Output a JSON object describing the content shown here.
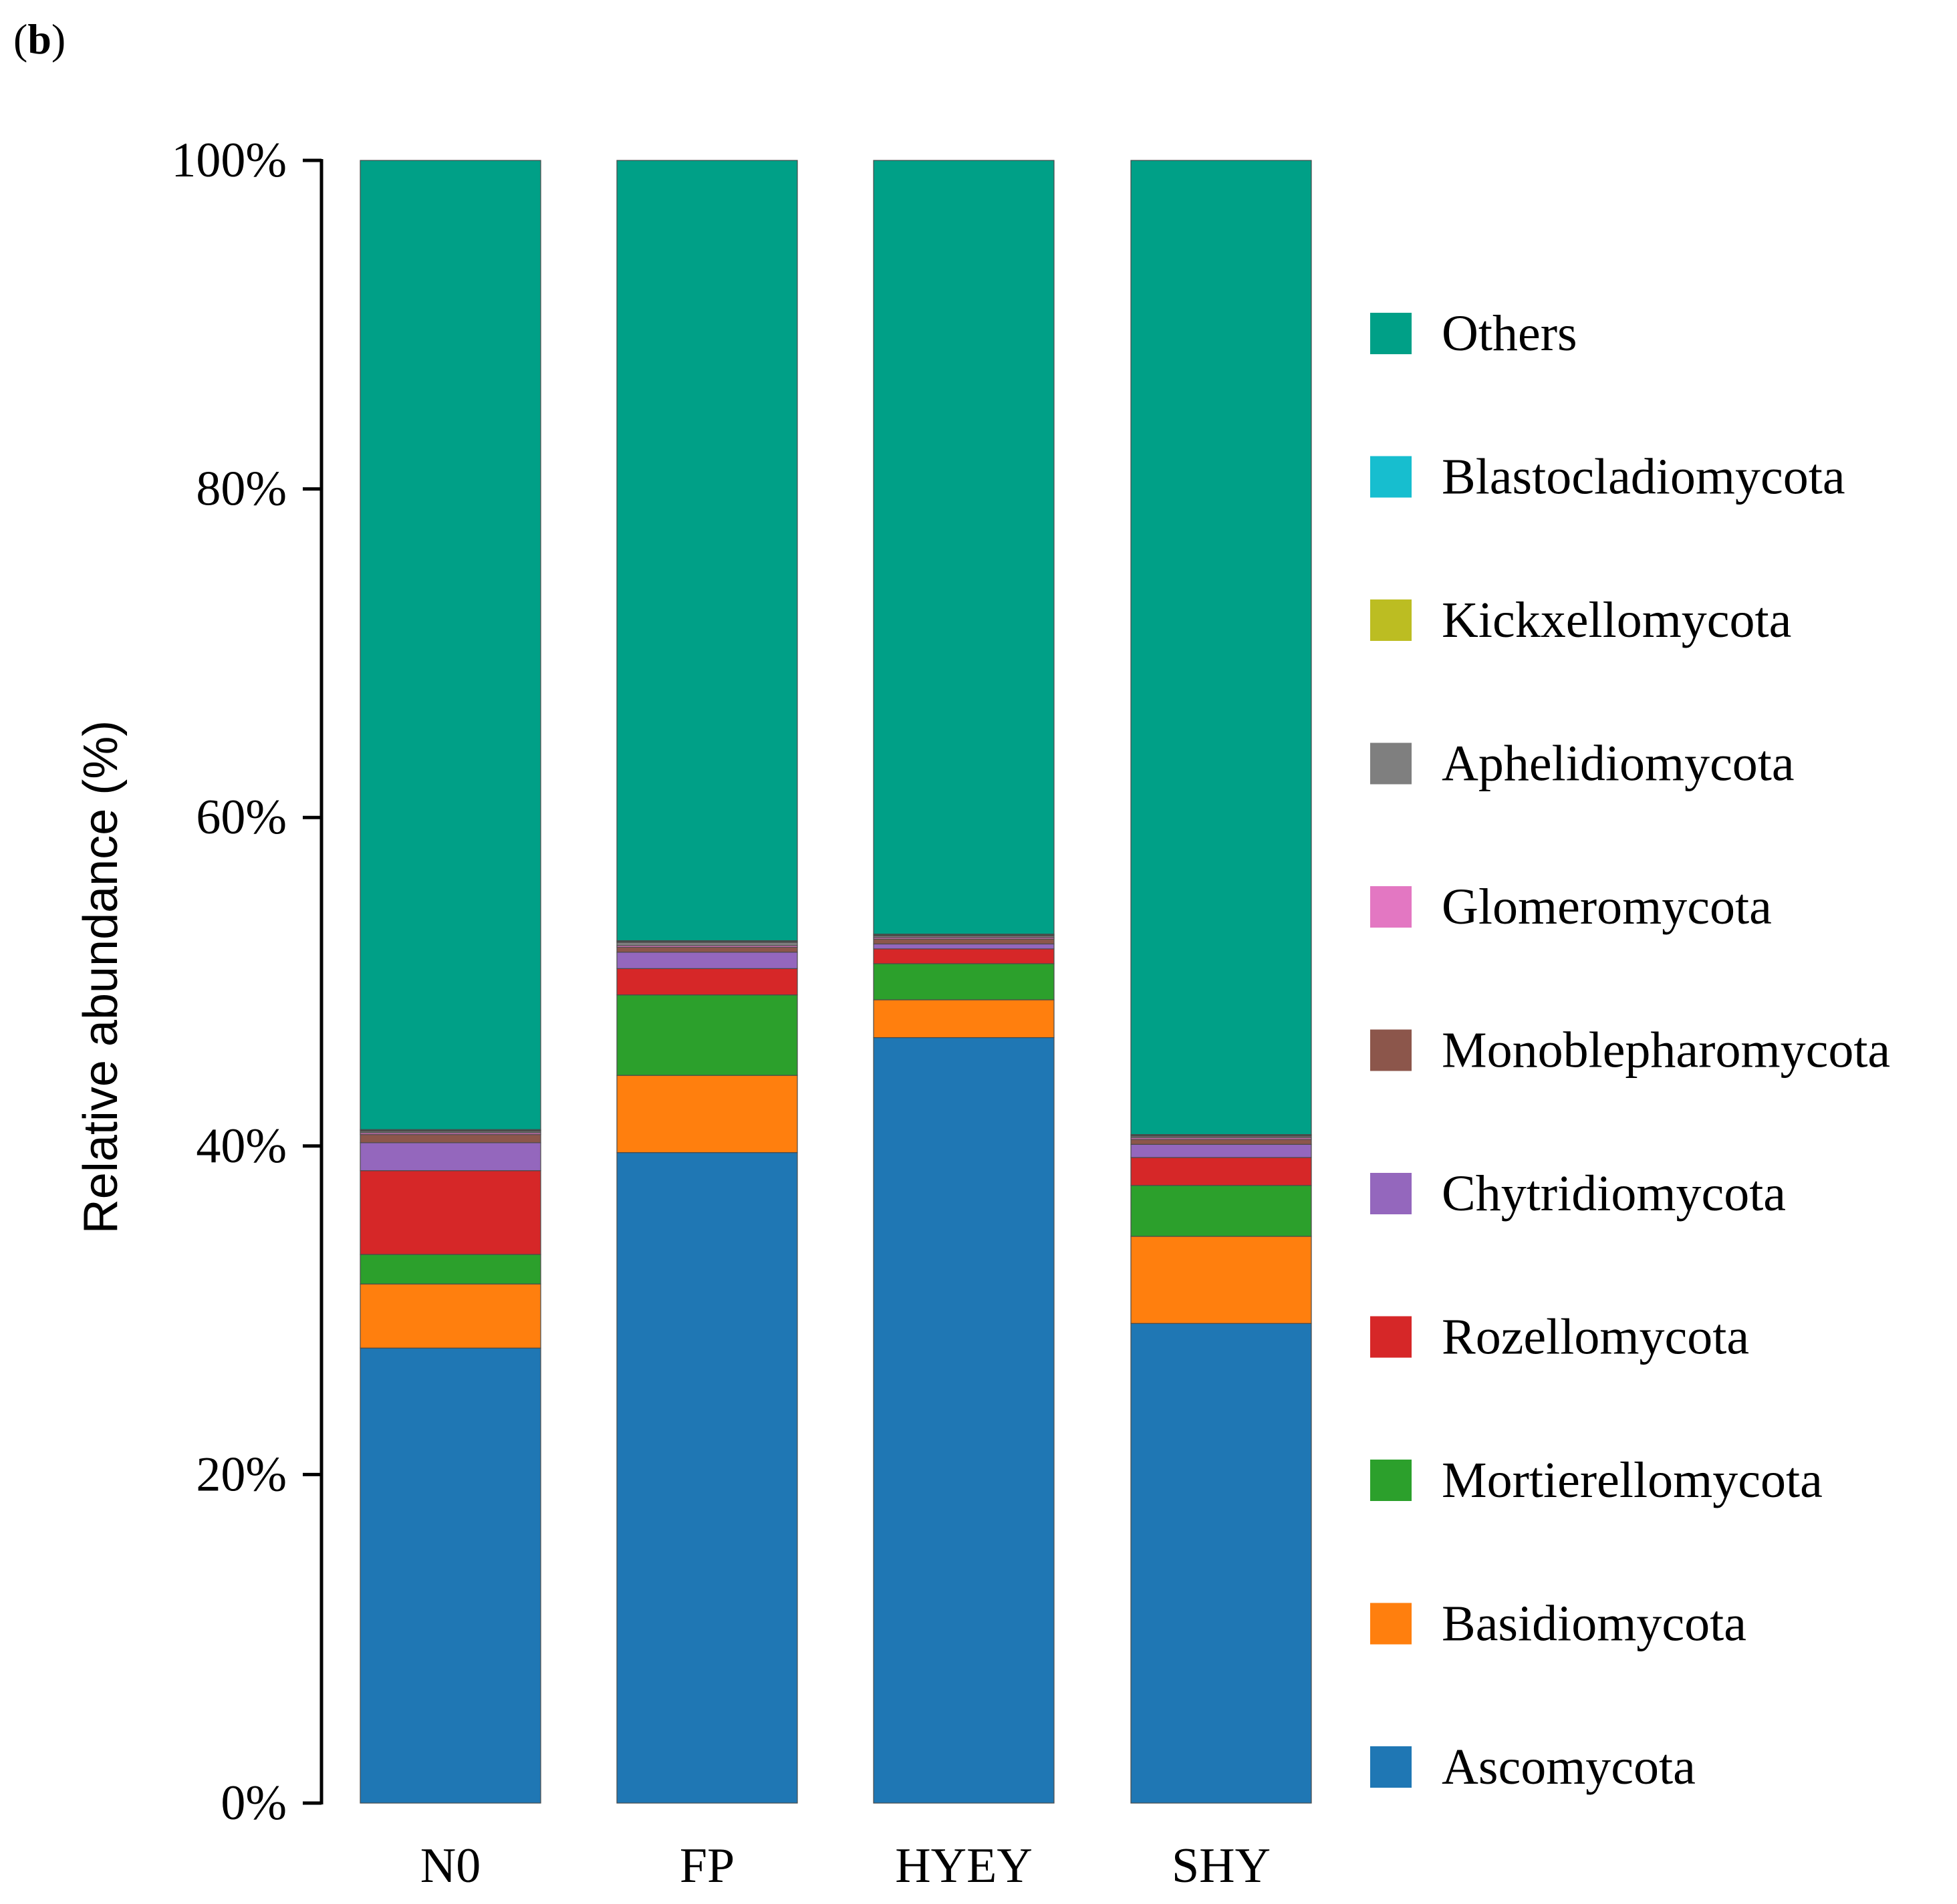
{
  "panel_label": "b",
  "chart_data": {
    "type": "bar",
    "stacked": true,
    "title": "",
    "xlabel": "",
    "ylabel": "Relative abundance (%)",
    "ylim": [
      0,
      100
    ],
    "yticks": [
      "0%",
      "20%",
      "40%",
      "60%",
      "80%",
      "100%"
    ],
    "categories": [
      "N0",
      "FP",
      "HYEY",
      "SHY"
    ],
    "legend_position": "right",
    "series": [
      {
        "name": "Ascomycota",
        "color": "#1f77b4",
        "values": [
          27.7,
          39.6,
          46.6,
          29.2
        ]
      },
      {
        "name": "Basidiomycota",
        "color": "#ff7f0e",
        "values": [
          3.9,
          4.7,
          2.3,
          5.3
        ]
      },
      {
        "name": "Mortierellomycota",
        "color": "#2ca02c",
        "values": [
          1.8,
          4.9,
          2.2,
          3.1
        ]
      },
      {
        "name": "Rozellomycota",
        "color": "#d62728",
        "values": [
          5.1,
          1.6,
          0.9,
          1.7
        ]
      },
      {
        "name": "Chytridiomycota",
        "color": "#9467bd",
        "values": [
          1.7,
          1.0,
          0.3,
          0.8
        ]
      },
      {
        "name": "Monoblepharomycota",
        "color": "#8c564b",
        "values": [
          0.5,
          0.3,
          0.3,
          0.3
        ]
      },
      {
        "name": "Glomeromycota",
        "color": "#e377c2",
        "values": [
          0.1,
          0.1,
          0.1,
          0.1
        ]
      },
      {
        "name": "Aphelidiomycota",
        "color": "#7f7f7f",
        "values": [
          0.1,
          0.2,
          0.1,
          0.1
        ]
      },
      {
        "name": "Kickxellomycota",
        "color": "#bcbd22",
        "values": [
          0.05,
          0.05,
          0.05,
          0.05
        ]
      },
      {
        "name": "Blastocladiomycota",
        "color": "#17becf",
        "values": [
          0.05,
          0.05,
          0.05,
          0.05
        ]
      },
      {
        "name": "Others",
        "color": "#00a087",
        "values": [
          59.0,
          47.5,
          47.1,
          59.3
        ]
      }
    ]
  }
}
